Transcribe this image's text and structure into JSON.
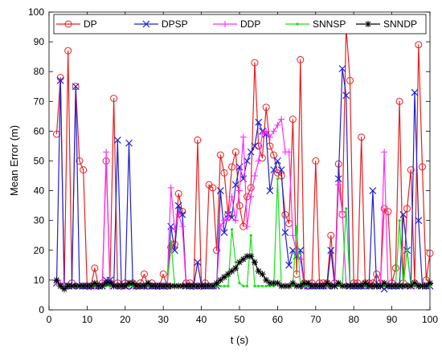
{
  "chart_data": {
    "type": "line",
    "title": "",
    "xlabel": "t (s)",
    "ylabel": "Mean Error (m)",
    "xlim": [
      0,
      100
    ],
    "ylim": [
      0,
      100
    ],
    "xticks": [
      0,
      10,
      20,
      30,
      40,
      50,
      60,
      70,
      80,
      90,
      100
    ],
    "yticks": [
      0,
      10,
      20,
      30,
      40,
      50,
      60,
      70,
      80,
      90,
      100
    ],
    "grid": false,
    "legend_placement": "top",
    "x": [
      2,
      3,
      4,
      5,
      6,
      7,
      8,
      9,
      10,
      11,
      12,
      13,
      14,
      15,
      16,
      17,
      18,
      19,
      20,
      21,
      22,
      23,
      24,
      25,
      26,
      27,
      28,
      29,
      30,
      31,
      32,
      33,
      34,
      35,
      36,
      37,
      38,
      39,
      40,
      41,
      42,
      43,
      44,
      45,
      46,
      47,
      48,
      49,
      50,
      51,
      52,
      53,
      54,
      55,
      56,
      57,
      58,
      59,
      60,
      61,
      62,
      63,
      64,
      65,
      66,
      67,
      68,
      69,
      70,
      71,
      72,
      73,
      74,
      75,
      76,
      77,
      78,
      79,
      80,
      81,
      82,
      83,
      84,
      85,
      86,
      87,
      88,
      89,
      90,
      91,
      92,
      93,
      94,
      95,
      96,
      97,
      98,
      99,
      100
    ],
    "series": [
      {
        "name": "DP",
        "color": "#e8201f",
        "marker": "circle",
        "values": [
          59,
          78,
          8,
          87,
          9,
          75,
          50,
          47,
          8,
          8,
          14,
          8,
          9,
          50,
          9,
          71,
          9,
          8,
          9,
          8,
          9,
          8,
          9,
          12,
          8,
          9,
          8,
          8,
          12,
          8,
          21,
          22,
          39,
          33,
          9,
          9,
          8,
          57,
          8,
          9,
          42,
          41,
          20,
          52,
          46,
          32,
          48,
          53,
          35,
          28,
          38,
          41,
          83,
          55,
          51,
          68,
          55,
          52,
          46,
          45,
          32,
          29,
          64,
          12,
          84,
          9,
          8,
          9,
          50,
          9,
          9,
          9,
          25,
          9,
          49,
          32,
          95,
          77,
          9,
          9,
          58,
          9,
          9,
          9,
          12,
          9,
          34,
          33,
          9,
          14,
          70,
          9,
          34,
          47,
          9,
          89,
          48,
          10,
          19
        ]
      },
      {
        "name": "DPSP",
        "color": "#1f21d6",
        "marker": "x",
        "values": [
          9,
          77,
          8,
          8,
          8,
          75,
          8,
          8,
          8,
          8,
          8,
          8,
          8,
          10,
          10,
          8,
          57,
          8,
          8,
          56,
          8,
          8,
          8,
          8,
          8,
          8,
          8,
          8,
          8,
          8,
          28,
          20,
          35,
          32,
          8,
          8,
          8,
          16,
          8,
          8,
          8,
          8,
          8,
          40,
          26,
          32,
          31,
          42,
          48,
          44,
          50,
          53,
          55,
          63,
          60,
          59,
          40,
          47,
          50,
          47,
          26,
          15,
          20,
          18,
          20,
          8,
          8,
          8,
          8,
          8,
          8,
          8,
          20,
          8,
          44,
          81,
          72,
          8,
          8,
          8,
          8,
          8,
          8,
          40,
          8,
          8,
          7,
          8,
          8,
          8,
          8,
          32,
          20,
          8,
          73,
          30,
          8,
          8,
          8
        ]
      },
      {
        "name": "DDP",
        "color": "#ff2aff",
        "marker": "plus",
        "values": [
          9,
          9,
          8,
          8,
          8,
          8,
          8,
          8,
          8,
          8,
          8,
          8,
          8,
          53,
          8,
          8,
          8,
          8,
          8,
          8,
          8,
          8,
          8,
          8,
          8,
          8,
          8,
          8,
          8,
          8,
          41,
          27,
          32,
          28,
          8,
          8,
          8,
          8,
          8,
          8,
          8,
          8,
          8,
          28,
          30,
          31,
          38,
          30,
          40,
          58,
          28,
          38,
          45,
          50,
          59,
          60,
          58,
          60,
          62,
          64,
          53,
          53,
          25,
          19,
          17,
          8,
          8,
          8,
          8,
          8,
          8,
          8,
          8,
          8,
          42,
          33,
          8,
          8,
          8,
          8,
          8,
          8,
          8,
          8,
          8,
          8,
          53,
          8,
          8,
          8,
          8,
          8,
          8,
          8,
          8,
          8,
          8,
          8,
          9
        ]
      },
      {
        "name": "SNNSP",
        "color": "#16e016",
        "marker": "dot",
        "values": [
          9,
          8,
          8,
          8,
          8,
          8,
          8,
          8,
          8,
          8,
          8,
          8,
          8,
          8,
          8,
          8,
          8,
          8,
          8,
          8,
          8,
          8,
          8,
          8,
          8,
          8,
          8,
          8,
          8,
          8,
          23,
          8,
          8,
          8,
          8,
          8,
          8,
          8,
          8,
          8,
          8,
          8,
          8,
          8,
          8,
          8,
          27,
          16,
          9,
          8,
          8,
          25,
          8,
          8,
          8,
          8,
          8,
          8,
          44,
          8,
          8,
          8,
          8,
          28,
          8,
          8,
          8,
          8,
          8,
          8,
          8,
          8,
          8,
          8,
          8,
          8,
          34,
          8,
          8,
          8,
          8,
          8,
          8,
          8,
          8,
          8,
          8,
          8,
          8,
          8,
          30,
          8,
          20,
          8,
          8,
          8,
          8,
          8,
          8
        ]
      },
      {
        "name": "SNNDP",
        "color": "#000000",
        "marker": "asterisk",
        "values": [
          10,
          8,
          7,
          8,
          8,
          8,
          8,
          8,
          8,
          8,
          9,
          8,
          8,
          9,
          9,
          8,
          8,
          8,
          8,
          9,
          9,
          8,
          8,
          8,
          9,
          8,
          8,
          8,
          8,
          8,
          8,
          8,
          8,
          8,
          8,
          8,
          8,
          8,
          8,
          8,
          8,
          8,
          9,
          10,
          11,
          12,
          13,
          14,
          16,
          17,
          18,
          18,
          16,
          13,
          12,
          10,
          9,
          9,
          9,
          8,
          8,
          8,
          9,
          8,
          8,
          9,
          9,
          8,
          8,
          8,
          8,
          9,
          8,
          8,
          9,
          8,
          8,
          8,
          8,
          8,
          8,
          9,
          8,
          8,
          8,
          8,
          9,
          8,
          8,
          8,
          8,
          8,
          8,
          8,
          9,
          8,
          8,
          8,
          9
        ]
      }
    ]
  }
}
